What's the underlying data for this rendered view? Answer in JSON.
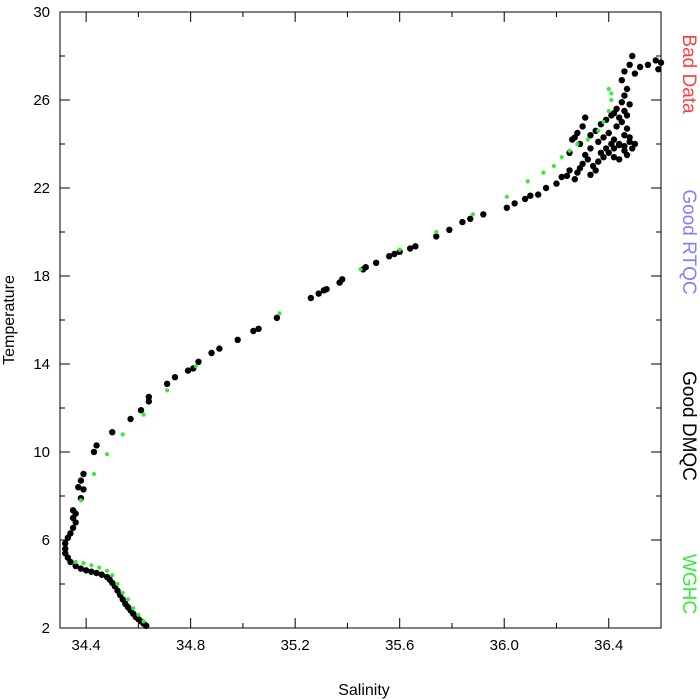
{
  "chart_data": {
    "type": "scatter",
    "title": "",
    "xlabel": "Salinity",
    "ylabel": "Temperature",
    "xlim": [
      34.3,
      36.6
    ],
    "ylim": [
      2,
      30
    ],
    "x_ticks": [
      "34.4",
      "34.8",
      "35.2",
      "35.6",
      "36.0",
      "36.4"
    ],
    "x_tick_values": [
      34.4,
      34.8,
      35.2,
      35.6,
      36.0,
      36.4
    ],
    "y_ticks": [
      "2",
      "6",
      "10",
      "14",
      "18",
      "22",
      "26",
      "30"
    ],
    "y_tick_values": [
      2,
      6,
      10,
      14,
      18,
      22,
      26,
      30
    ],
    "legend_placement": "right side, vertical",
    "legend": [
      {
        "label": "Bad Data",
        "color": "#ff4040"
      },
      {
        "label": "Good RTQC",
        "color": "#8080ff"
      },
      {
        "label": "Good DMQC",
        "color": "#000000"
      },
      {
        "label": "WGHC",
        "color": "#33ee33"
      }
    ],
    "series": [
      {
        "name": "Good DMQC",
        "color": "#000000",
        "points": [
          [
            34.63,
            2.1
          ],
          [
            34.62,
            2.2
          ],
          [
            34.61,
            2.3
          ],
          [
            34.6,
            2.4
          ],
          [
            34.59,
            2.5
          ],
          [
            34.58,
            2.65
          ],
          [
            34.57,
            2.8
          ],
          [
            34.56,
            2.95
          ],
          [
            34.55,
            3.1
          ],
          [
            34.54,
            3.3
          ],
          [
            34.53,
            3.5
          ],
          [
            34.52,
            3.7
          ],
          [
            34.51,
            3.9
          ],
          [
            34.5,
            4.05
          ],
          [
            34.49,
            4.2
          ],
          [
            34.48,
            4.32
          ],
          [
            34.46,
            4.42
          ],
          [
            34.44,
            4.5
          ],
          [
            34.42,
            4.56
          ],
          [
            34.4,
            4.62
          ],
          [
            34.38,
            4.7
          ],
          [
            34.36,
            4.82
          ],
          [
            34.34,
            5.0
          ],
          [
            34.33,
            5.2
          ],
          [
            34.32,
            5.4
          ],
          [
            34.32,
            5.6
          ],
          [
            34.32,
            5.85
          ],
          [
            34.33,
            6.1
          ],
          [
            34.34,
            6.3
          ],
          [
            34.35,
            6.55
          ],
          [
            34.36,
            6.8
          ],
          [
            34.35,
            7.0
          ],
          [
            34.36,
            7.2
          ],
          [
            34.35,
            7.35
          ],
          [
            34.38,
            7.9
          ],
          [
            34.39,
            8.3
          ],
          [
            34.37,
            8.4
          ],
          [
            34.38,
            8.7
          ],
          [
            34.39,
            9.0
          ],
          [
            34.43,
            10.0
          ],
          [
            34.44,
            10.3
          ],
          [
            34.5,
            10.9
          ],
          [
            34.57,
            11.5
          ],
          [
            34.61,
            11.9
          ],
          [
            34.64,
            12.3
          ],
          [
            34.64,
            12.5
          ],
          [
            34.71,
            13.1
          ],
          [
            34.74,
            13.4
          ],
          [
            34.79,
            13.7
          ],
          [
            34.81,
            13.8
          ],
          [
            34.83,
            14.1
          ],
          [
            34.88,
            14.5
          ],
          [
            34.91,
            14.7
          ],
          [
            34.98,
            15.1
          ],
          [
            35.04,
            15.5
          ],
          [
            35.06,
            15.6
          ],
          [
            35.13,
            16.1
          ],
          [
            35.26,
            17.0
          ],
          [
            35.29,
            17.2
          ],
          [
            35.31,
            17.35
          ],
          [
            35.32,
            17.4
          ],
          [
            35.37,
            17.7
          ],
          [
            35.38,
            17.85
          ],
          [
            35.46,
            18.3
          ],
          [
            35.47,
            18.4
          ],
          [
            35.51,
            18.6
          ],
          [
            35.56,
            18.9
          ],
          [
            35.58,
            19.0
          ],
          [
            35.6,
            19.1
          ],
          [
            35.64,
            19.25
          ],
          [
            35.66,
            19.35
          ],
          [
            35.74,
            19.8
          ],
          [
            35.79,
            20.1
          ],
          [
            35.84,
            20.45
          ],
          [
            35.87,
            20.6
          ],
          [
            35.92,
            20.8
          ],
          [
            36.01,
            21.1
          ],
          [
            36.04,
            21.3
          ],
          [
            36.08,
            21.5
          ],
          [
            36.1,
            21.65
          ],
          [
            36.13,
            21.7
          ],
          [
            36.16,
            22.0
          ],
          [
            36.2,
            22.2
          ],
          [
            36.22,
            22.5
          ],
          [
            36.25,
            22.8
          ],
          [
            36.24,
            22.55
          ],
          [
            36.27,
            22.4
          ],
          [
            36.29,
            22.9
          ],
          [
            36.3,
            23.1
          ],
          [
            36.32,
            23.3
          ],
          [
            36.34,
            23.0
          ],
          [
            36.36,
            23.2
          ],
          [
            36.38,
            23.4
          ],
          [
            36.4,
            23.6
          ],
          [
            36.42,
            23.8
          ],
          [
            36.44,
            23.95
          ],
          [
            36.46,
            23.7
          ],
          [
            36.47,
            23.5
          ],
          [
            36.49,
            23.8
          ],
          [
            36.25,
            23.6
          ],
          [
            36.26,
            24.2
          ],
          [
            36.28,
            24.5
          ],
          [
            36.3,
            24.8
          ],
          [
            36.31,
            25.2
          ],
          [
            36.33,
            24.4
          ],
          [
            36.35,
            24.6
          ],
          [
            36.37,
            24.9
          ],
          [
            36.39,
            25.1
          ],
          [
            36.41,
            25.3
          ],
          [
            36.43,
            25.6
          ],
          [
            36.45,
            25.9
          ],
          [
            36.46,
            26.2
          ],
          [
            36.47,
            26.5
          ],
          [
            36.45,
            26.9
          ],
          [
            36.46,
            27.3
          ],
          [
            36.48,
            27.6
          ],
          [
            36.49,
            28.0
          ],
          [
            36.5,
            27.2
          ],
          [
            36.52,
            27.5
          ],
          [
            36.55,
            27.6
          ],
          [
            36.58,
            27.8
          ],
          [
            36.6,
            27.7
          ],
          [
            36.59,
            27.4
          ],
          [
            36.36,
            24.1
          ],
          [
            36.38,
            24.3
          ],
          [
            36.4,
            24.5
          ],
          [
            36.42,
            24.2
          ],
          [
            36.44,
            24.0
          ],
          [
            36.46,
            24.4
          ],
          [
            36.48,
            24.1
          ],
          [
            36.47,
            24.7
          ],
          [
            36.45,
            25.0
          ],
          [
            36.43,
            24.8
          ],
          [
            36.41,
            24.0
          ],
          [
            36.39,
            23.8
          ],
          [
            36.37,
            23.6
          ],
          [
            36.42,
            23.4
          ],
          [
            36.44,
            23.3
          ],
          [
            36.46,
            23.9
          ],
          [
            36.48,
            24.3
          ],
          [
            36.5,
            24.0
          ],
          [
            36.47,
            25.3
          ],
          [
            36.48,
            25.8
          ],
          [
            36.46,
            25.5
          ],
          [
            36.44,
            25.2
          ],
          [
            36.42,
            25.4
          ],
          [
            36.33,
            23.8
          ],
          [
            36.31,
            23.5
          ],
          [
            36.29,
            24.0
          ],
          [
            36.27,
            24.3
          ],
          [
            36.35,
            22.8
          ],
          [
            36.33,
            22.6
          ],
          [
            36.28,
            22.7
          ]
        ]
      },
      {
        "name": "WGHC",
        "color": "#33ee33",
        "points": [
          [
            34.36,
            5.0
          ],
          [
            34.39,
            4.95
          ],
          [
            34.42,
            4.85
          ],
          [
            34.45,
            4.75
          ],
          [
            34.48,
            4.6
          ],
          [
            34.5,
            4.4
          ],
          [
            34.52,
            4.0
          ],
          [
            34.54,
            3.6
          ],
          [
            34.56,
            3.3
          ],
          [
            34.58,
            2.9
          ],
          [
            34.6,
            2.6
          ],
          [
            34.62,
            2.3
          ],
          [
            34.38,
            7.8
          ],
          [
            34.43,
            9.0
          ],
          [
            34.48,
            9.9
          ],
          [
            34.54,
            10.8
          ],
          [
            34.62,
            11.7
          ],
          [
            34.71,
            12.8
          ],
          [
            34.82,
            13.9
          ],
          [
            35.14,
            16.3
          ],
          [
            35.45,
            18.3
          ],
          [
            35.6,
            19.2
          ],
          [
            35.74,
            20.0
          ],
          [
            35.88,
            20.8
          ],
          [
            36.01,
            21.6
          ],
          [
            36.09,
            22.3
          ],
          [
            36.15,
            22.7
          ],
          [
            36.19,
            23.0
          ],
          [
            36.22,
            23.4
          ],
          [
            36.25,
            23.7
          ],
          [
            36.28,
            24.0
          ],
          [
            36.32,
            24.2
          ],
          [
            36.36,
            24.6
          ],
          [
            36.38,
            25.0
          ],
          [
            36.4,
            25.5
          ],
          [
            36.41,
            26.0
          ],
          [
            36.4,
            26.5
          ],
          [
            36.41,
            26.3
          ]
        ]
      }
    ]
  }
}
